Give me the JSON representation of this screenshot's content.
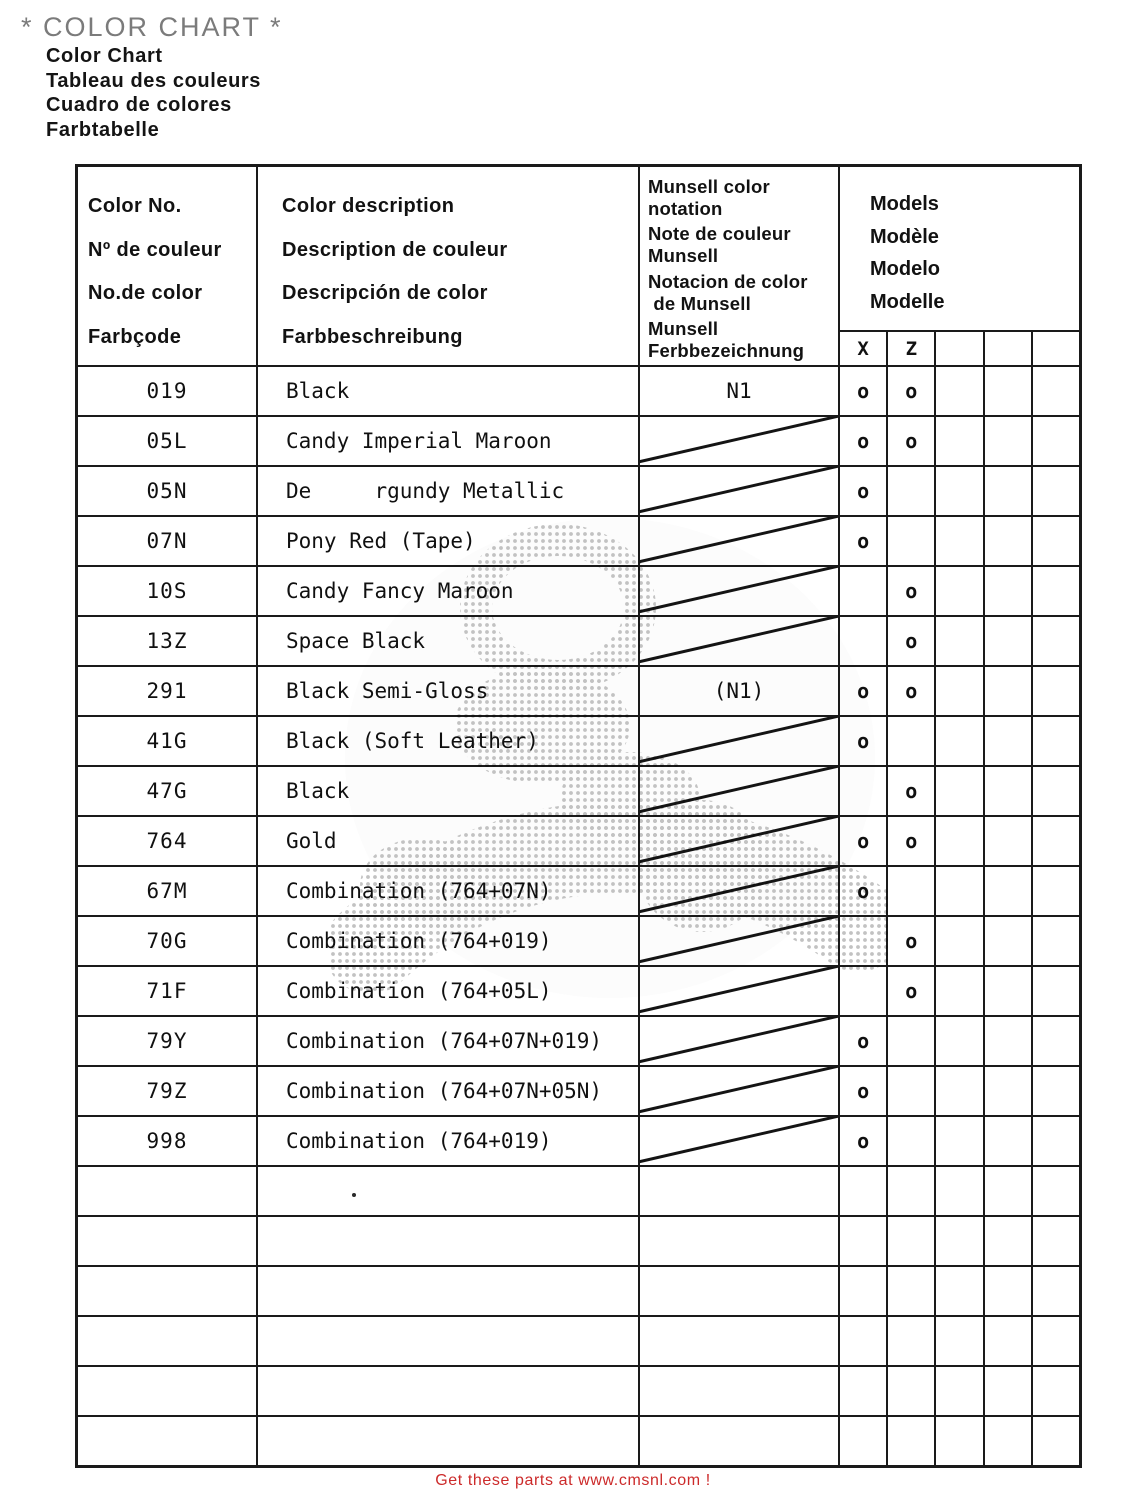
{
  "title": "* COLOR CHART *",
  "subtitles": [
    "Color Chart",
    "Tableau des couleurs",
    "Cuadro de colores",
    "Farbtabelle"
  ],
  "table": {
    "header": {
      "color_no_lines": [
        "Color No.",
        "Nº de couleur",
        "No.de color",
        "Farbçode"
      ],
      "description_lines": [
        "Color description",
        "Description de couleur",
        "Descripción de color",
        "Farbbeschreibung"
      ],
      "munsell_groups": [
        [
          "Munsell color",
          "notation"
        ],
        [
          "Note de couleur",
          "Munsell"
        ],
        [
          "Notacion de color",
          " de Munsell"
        ],
        [
          "Munsell",
          "Ferbbezeichnung"
        ]
      ],
      "models_lines": [
        "Models",
        "Modèle",
        "Modelo",
        "Modelle"
      ],
      "model_columns": [
        "X",
        "Z",
        "",
        "",
        ""
      ]
    },
    "rows": [
      {
        "no": "019",
        "description": "Black",
        "munsell": "N1",
        "slash": false,
        "marks": [
          "o",
          "o",
          "",
          "",
          ""
        ]
      },
      {
        "no": "05L",
        "description": "Candy Imperial Maroon",
        "munsell": "",
        "slash": true,
        "marks": [
          "o",
          "o",
          "",
          "",
          ""
        ]
      },
      {
        "no": "05N",
        "description": "De     rgundy Metallic",
        "munsell": "",
        "slash": true,
        "marks": [
          "o",
          "",
          "",
          "",
          ""
        ]
      },
      {
        "no": "07N",
        "description": "Pony Red (Tape)",
        "munsell": "",
        "slash": true,
        "marks": [
          "o",
          "",
          "",
          "",
          ""
        ]
      },
      {
        "no": "10S",
        "description": "Candy Fancy Maroon",
        "munsell": "",
        "slash": true,
        "marks": [
          "",
          "o",
          "",
          "",
          ""
        ]
      },
      {
        "no": "13Z",
        "description": "Space Black",
        "munsell": "",
        "slash": true,
        "marks": [
          "",
          "o",
          "",
          "",
          ""
        ]
      },
      {
        "no": "291",
        "description": "Black Semi-Gloss",
        "munsell": "(N1)",
        "slash": false,
        "marks": [
          "o",
          "o",
          "",
          "",
          ""
        ]
      },
      {
        "no": "41G",
        "description": "Black (Soft Leather)",
        "munsell": "",
        "slash": true,
        "marks": [
          "o",
          "",
          "",
          "",
          ""
        ]
      },
      {
        "no": "47G",
        "description": "Black",
        "munsell": "",
        "slash": true,
        "marks": [
          "",
          "o",
          "",
          "",
          ""
        ]
      },
      {
        "no": "764",
        "description": "Gold",
        "munsell": "",
        "slash": true,
        "marks": [
          "o",
          "o",
          "",
          "",
          ""
        ]
      },
      {
        "no": "67M",
        "description": "Combination (764+07N)",
        "munsell": "",
        "slash": true,
        "marks": [
          "o",
          "",
          "",
          "",
          ""
        ]
      },
      {
        "no": "70G",
        "description": "Combination (764+019)",
        "munsell": "",
        "slash": true,
        "marks": [
          "",
          "o",
          "",
          "",
          ""
        ]
      },
      {
        "no": "71F",
        "description": "Combination (764+05L)",
        "munsell": "",
        "slash": true,
        "marks": [
          "",
          "o",
          "",
          "",
          ""
        ]
      },
      {
        "no": "79Y",
        "description": "Combination (764+07N+019)",
        "munsell": "",
        "slash": true,
        "marks": [
          "o",
          "",
          "",
          "",
          ""
        ]
      },
      {
        "no": "79Z",
        "description": "Combination (764+07N+05N)",
        "munsell": "",
        "slash": true,
        "marks": [
          "o",
          "",
          "",
          "",
          ""
        ]
      },
      {
        "no": "998",
        "description": "Combination (764+019)",
        "munsell": "",
        "slash": true,
        "marks": [
          "o",
          "",
          "",
          "",
          ""
        ]
      }
    ],
    "empty_row_count": 6
  },
  "footer": {
    "text": "Get these parts at www.cmsnl.com !",
    "color": "#cc2a2a"
  },
  "ink_color": "#1a1a1a",
  "title_color": "#7b7b7b"
}
